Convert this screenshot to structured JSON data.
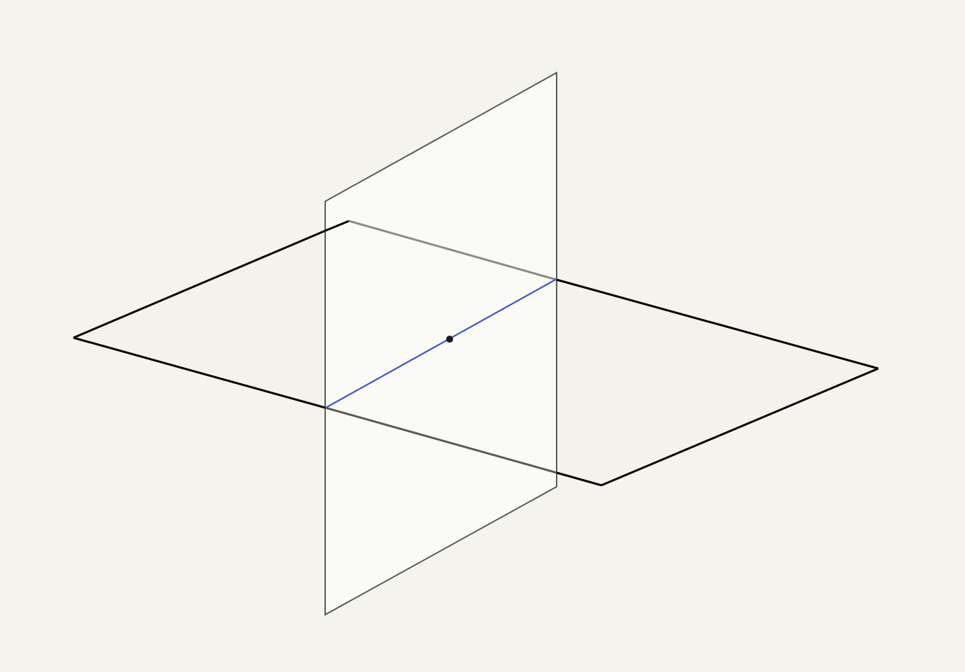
{
  "figure": {
    "description_kind": "two-intersecting-planes",
    "colors": {
      "background": "#f5f3ed",
      "horizontal_plane_fill": "#f4f2ec",
      "horizontal_plane_edge": "#000000",
      "vertical_plane_fill": "#fbfbf9",
      "vertical_plane_edge": "#5a5a58",
      "hidden_edge": "#8a8a88",
      "intersection_line": "#3d55c8",
      "center_point": "#1a1a1a"
    },
    "vertical_plane_opacity": 0.82
  }
}
